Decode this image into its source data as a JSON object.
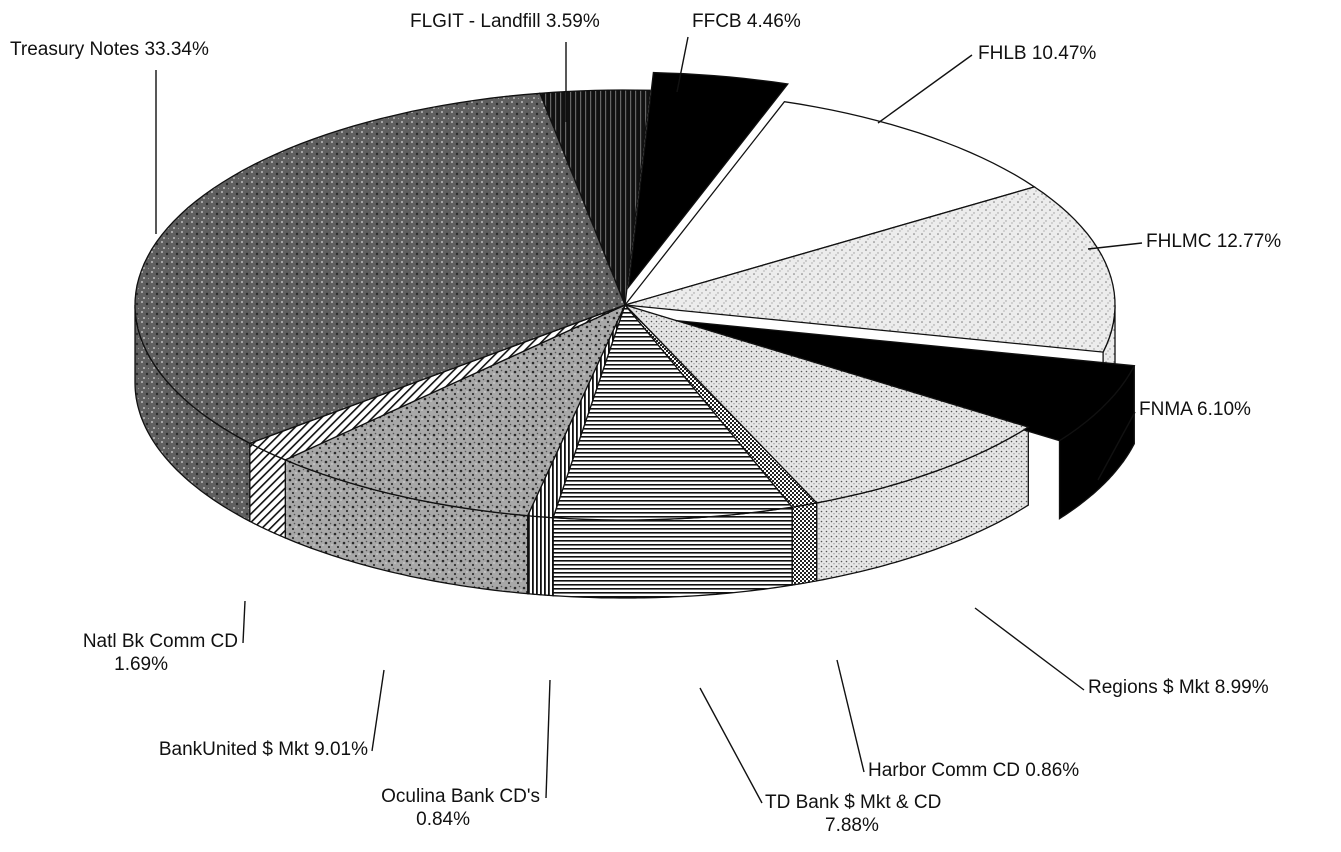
{
  "chart_data": {
    "type": "pie",
    "style": "3d-exploded-tilted",
    "title": "",
    "slices": [
      {
        "label": "FLGIT - Landfill 3.59%",
        "name": "FLGIT - Landfill",
        "value": 3.59,
        "pattern": "pat-stripe-v",
        "color": "#111111"
      },
      {
        "label": "FFCB 4.46%",
        "name": "FFCB",
        "value": 4.46,
        "pattern": "",
        "color": "#000000"
      },
      {
        "label": "FHLB 10.47%",
        "name": "FHLB",
        "value": 10.47,
        "pattern": "",
        "color": "#ffffff"
      },
      {
        "label": "FHLMC 12.77%",
        "name": "FHLMC",
        "value": 12.77,
        "pattern": "pat-speckle-light",
        "color": "#e8e8e8"
      },
      {
        "label": "FNMA 6.10%",
        "name": "FNMA",
        "value": 6.1,
        "pattern": "",
        "color": "#000000"
      },
      {
        "label": "Regions $ Mkt 8.99%",
        "name": "Regions $ Mkt",
        "value": 8.99,
        "pattern": "pat-dots",
        "color": "#dcdcdc"
      },
      {
        "label": "Harbor Comm CD 0.86%",
        "name": "Harbor Comm CD",
        "value": 0.86,
        "pattern": "pat-checker",
        "color": "#bdbdbd"
      },
      {
        "label": "TD Bank $ Mkt & CD\n7.88%",
        "name": "TD Bank $ Mkt & CD",
        "value": 7.88,
        "pattern": "pat-hlines",
        "color": "#ffffff"
      },
      {
        "label": "Oculina Bank CD's\n0.84%",
        "name": "Oculina Bank CD's",
        "value": 0.84,
        "pattern": "pat-vlines",
        "color": "#ffffff"
      },
      {
        "label": "BankUnited $ Mkt 9.01%",
        "name": "BankUnited $ Mkt",
        "value": 9.01,
        "pattern": "pat-speckle-mid",
        "color": "#9a9a9a"
      },
      {
        "label": "Natl Bk Comm CD\n1.69%",
        "name": "Natl Bk Comm CD",
        "value": 1.69,
        "pattern": "pat-diag",
        "color": "#ffffff"
      },
      {
        "label": "Treasury Notes 33.34%",
        "name": "Treasury Notes",
        "value": 33.34,
        "pattern": "pat-speckle-dark",
        "color": "#6e6e6e"
      }
    ],
    "legend": "none",
    "labels": "outside-with-leader-lines"
  }
}
